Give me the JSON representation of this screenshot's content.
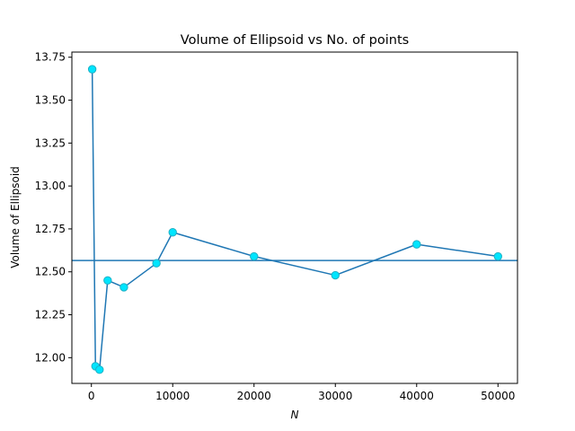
{
  "chart_data": {
    "type": "line",
    "title": "Volume of Ellipsoid vs No. of points",
    "xlabel": "N",
    "ylabel": "Volume of Ellipsoid",
    "xlim": [
      -2400,
      52400
    ],
    "ylim": [
      11.85,
      13.78
    ],
    "x_ticks": [
      0,
      10000,
      20000,
      30000,
      40000,
      50000
    ],
    "x_tick_labels": [
      "0",
      "10000",
      "20000",
      "30000",
      "40000",
      "50000"
    ],
    "y_ticks": [
      12.0,
      12.25,
      12.5,
      12.75,
      13.0,
      13.25,
      13.5,
      13.75
    ],
    "y_tick_labels": [
      "12.00",
      "12.25",
      "12.50",
      "12.75",
      "13.00",
      "13.25",
      "13.50",
      "13.75"
    ],
    "grid": false,
    "series": [
      {
        "x": [
          100,
          500,
          1000,
          2000,
          4000,
          8000,
          10000,
          20000,
          30000,
          40000,
          50000
        ],
        "y": [
          13.68,
          11.95,
          11.93,
          12.45,
          12.41,
          12.55,
          12.73,
          12.59,
          12.48,
          12.66,
          12.59
        ],
        "color": "#1f77b4",
        "marker": "circle",
        "marker_face": "#00e5ff",
        "marker_edge": "#1fb0c4"
      }
    ],
    "reference_lines": [
      {
        "orientation": "horizontal",
        "y": 12.566,
        "color": "#1f77b4"
      }
    ]
  }
}
